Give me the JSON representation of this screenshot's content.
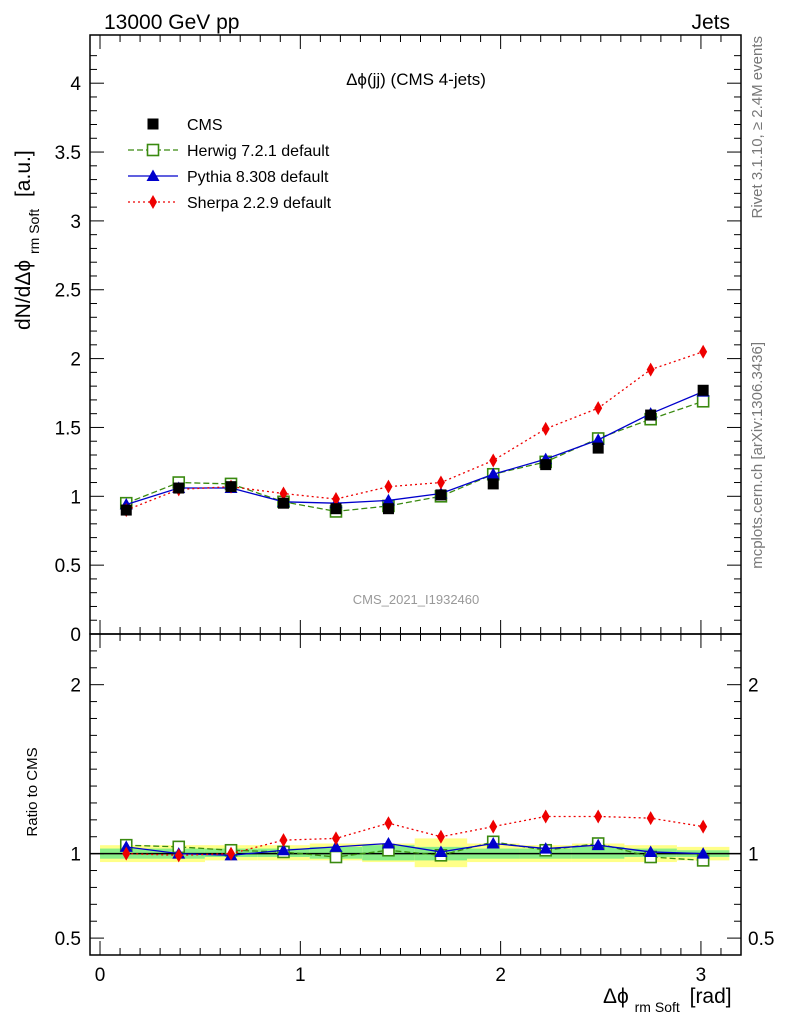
{
  "header": {
    "left": "13000 GeV pp",
    "right": "Jets"
  },
  "side_text": {
    "rivet": "Rivet 3.1.10, ≥ 2.4M events",
    "mcplots": "mcplots.cern.ch [arXiv:1306.3436]"
  },
  "plot": {
    "title": "Δϕ(jj) (CMS 4-jets)",
    "watermark": "CMS_2021_I1932460",
    "ylabel_main": "dN/dΔϕ",
    "ylabel_main_sub": "rm Soft",
    "ylabel_main_unit": "[a.u.]",
    "ylabel_ratio": "Ratio to CMS",
    "xlabel": "Δϕ",
    "xlabel_sub": "rm Soft",
    "xlabel_unit": "[rad]"
  },
  "colors": {
    "cms": "#000000",
    "herwig": "#3a8a10",
    "pythia": "#0000cc",
    "sherpa": "#ee0000",
    "band_yellow": "#ffff88",
    "band_green": "#88ee88"
  },
  "chart_data": {
    "type": "line",
    "x": [
      0.131,
      0.393,
      0.654,
      0.916,
      1.178,
      1.44,
      1.702,
      1.963,
      2.225,
      2.487,
      2.749,
      3.011
    ],
    "xlim": [
      -0.05,
      3.2
    ],
    "xticks": [
      "0",
      "1",
      "2",
      "3"
    ],
    "main": {
      "ylim": [
        0,
        4.35
      ],
      "yticks": [
        "0",
        "0.5",
        "1",
        "1.5",
        "2",
        "2.5",
        "3",
        "3.5",
        "4"
      ]
    },
    "ratio": {
      "ylim": [
        0.4,
        2.3
      ],
      "yticks": [
        "0.5",
        "1",
        "2"
      ]
    },
    "series": [
      {
        "name": "CMS",
        "key": "cms",
        "values": [
          0.9,
          1.06,
          1.07,
          0.95,
          0.91,
          0.91,
          1.01,
          1.09,
          1.23,
          1.35,
          1.59,
          1.77
        ]
      },
      {
        "name": "Herwig 7.2.1 default",
        "key": "herwig",
        "values": [
          0.95,
          1.1,
          1.09,
          0.96,
          0.89,
          0.93,
          1.0,
          1.16,
          1.25,
          1.42,
          1.56,
          1.69
        ]
      },
      {
        "name": "Pythia 8.308 default",
        "key": "pythia",
        "values": [
          0.94,
          1.06,
          1.06,
          0.96,
          0.95,
          0.97,
          1.02,
          1.16,
          1.27,
          1.41,
          1.6,
          1.76
        ]
      },
      {
        "name": "Sherpa 2.2.9 default",
        "key": "sherpa",
        "values": [
          0.9,
          1.05,
          1.07,
          1.02,
          0.98,
          1.07,
          1.1,
          1.26,
          1.49,
          1.64,
          1.92,
          2.05
        ]
      }
    ],
    "ratios": {
      "herwig": [
        1.05,
        1.04,
        1.02,
        1.01,
        0.98,
        1.02,
        0.99,
        1.07,
        1.02,
        1.06,
        0.98,
        0.96
      ],
      "pythia": [
        1.04,
        1.0,
        0.99,
        1.02,
        1.04,
        1.06,
        1.01,
        1.06,
        1.03,
        1.05,
        1.01,
        1.0
      ],
      "sherpa": [
        1.0,
        0.99,
        1.0,
        1.08,
        1.09,
        1.18,
        1.1,
        1.16,
        1.22,
        1.22,
        1.21,
        1.16
      ]
    },
    "uncertainty_bands": {
      "yellow": [
        [
          0.95,
          1.05
        ],
        [
          0.95,
          1.05
        ],
        [
          0.96,
          1.05
        ],
        [
          0.96,
          1.05
        ],
        [
          0.96,
          1.06
        ],
        [
          0.95,
          1.06
        ],
        [
          0.92,
          1.09
        ],
        [
          0.95,
          1.06
        ],
        [
          0.95,
          1.05
        ],
        [
          0.95,
          1.06
        ],
        [
          0.95,
          1.05
        ],
        [
          0.96,
          1.04
        ]
      ],
      "green": [
        [
          0.97,
          1.03
        ],
        [
          0.97,
          1.03
        ],
        [
          0.98,
          1.03
        ],
        [
          0.98,
          1.03
        ],
        [
          0.97,
          1.04
        ],
        [
          0.96,
          1.05
        ],
        [
          0.96,
          1.04
        ],
        [
          0.97,
          1.03
        ],
        [
          0.97,
          1.03
        ],
        [
          0.97,
          1.04
        ],
        [
          0.98,
          1.03
        ],
        [
          0.98,
          1.02
        ]
      ]
    },
    "sherpa_errors": [
      0.02,
      0.02,
      0.02,
      0.02,
      0.02,
      0.02,
      0.02,
      0.03,
      0.03,
      0.03,
      0.04,
      0.04
    ],
    "legend_position": "top-left"
  }
}
